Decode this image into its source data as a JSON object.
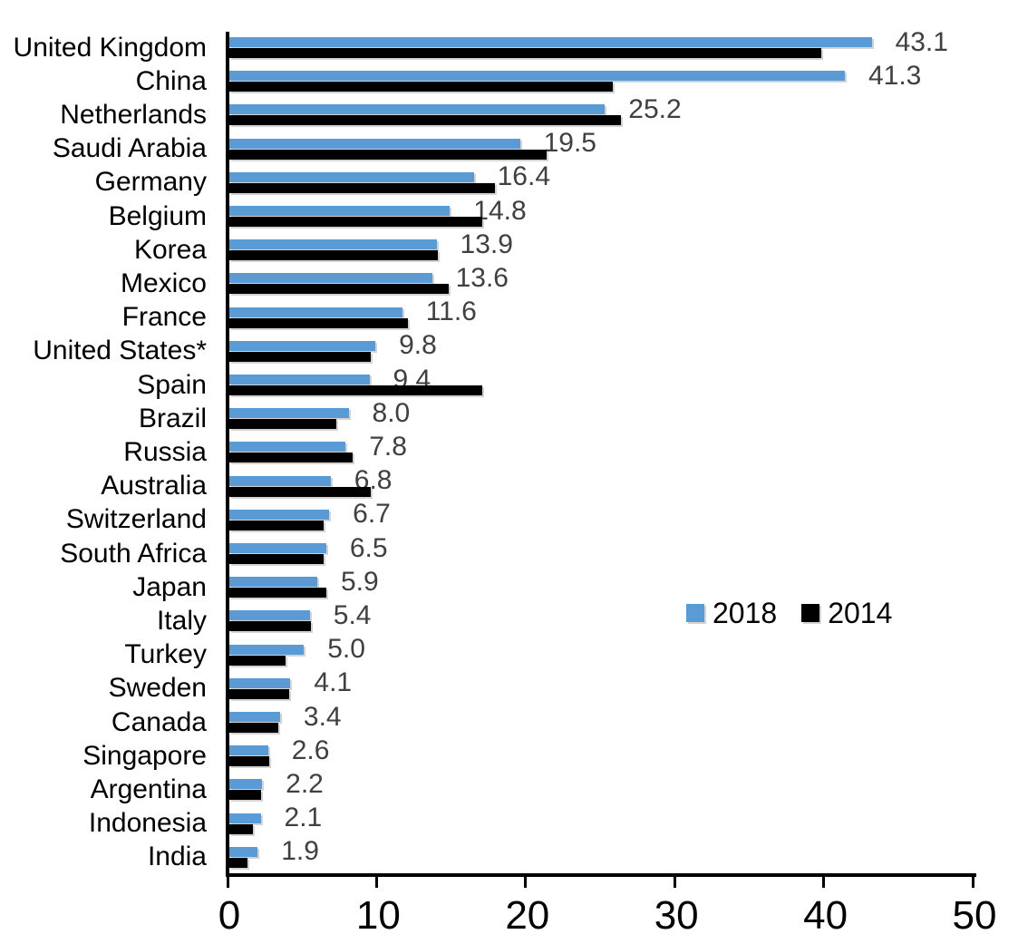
{
  "chart_data": {
    "type": "bar",
    "orientation": "horizontal",
    "title": "",
    "categories": [
      "United Kingdom",
      "China",
      "Netherlands",
      "Saudi Arabia",
      "Germany",
      "Belgium",
      "Korea",
      "Mexico",
      "France",
      "United States*",
      "Spain",
      "Brazil",
      "Russia",
      "Australia",
      "Switzerland",
      "South Africa",
      "Japan",
      "Italy",
      "Turkey",
      "Sweden",
      "Canada",
      "Singapore",
      "Argentina",
      "Indonesia",
      "India"
    ],
    "series": [
      {
        "name": "2018",
        "color": "#5B9BD5",
        "data_labels_shown": true,
        "values": [
          43.1,
          41.3,
          25.2,
          19.5,
          16.4,
          14.8,
          13.9,
          13.6,
          11.6,
          9.8,
          9.4,
          8.0,
          7.8,
          6.8,
          6.7,
          6.5,
          5.9,
          5.4,
          5.0,
          4.1,
          3.4,
          2.6,
          2.2,
          2.1,
          1.9
        ]
      },
      {
        "name": "2014",
        "color": "#000000",
        "data_labels_shown": false,
        "values": [
          39.7,
          25.7,
          26.3,
          21.3,
          17.8,
          17.0,
          14.0,
          14.7,
          12.0,
          9.5,
          17.0,
          7.2,
          8.3,
          9.5,
          6.3,
          6.3,
          6.5,
          5.5,
          3.8,
          4.0,
          3.3,
          2.7,
          2.1,
          1.6,
          1.2
        ]
      }
    ],
    "value_label_format": "one-decimal",
    "value_label_color": "#404040",
    "xlabel": "",
    "ylabel": "",
    "xlim": [
      0,
      50
    ],
    "x_ticks": [
      0,
      10,
      20,
      30,
      40,
      50
    ],
    "grid": "off",
    "axis_color": "#000000",
    "legend": {
      "position": "center-right",
      "entries": [
        "2018",
        "2014"
      ]
    }
  }
}
